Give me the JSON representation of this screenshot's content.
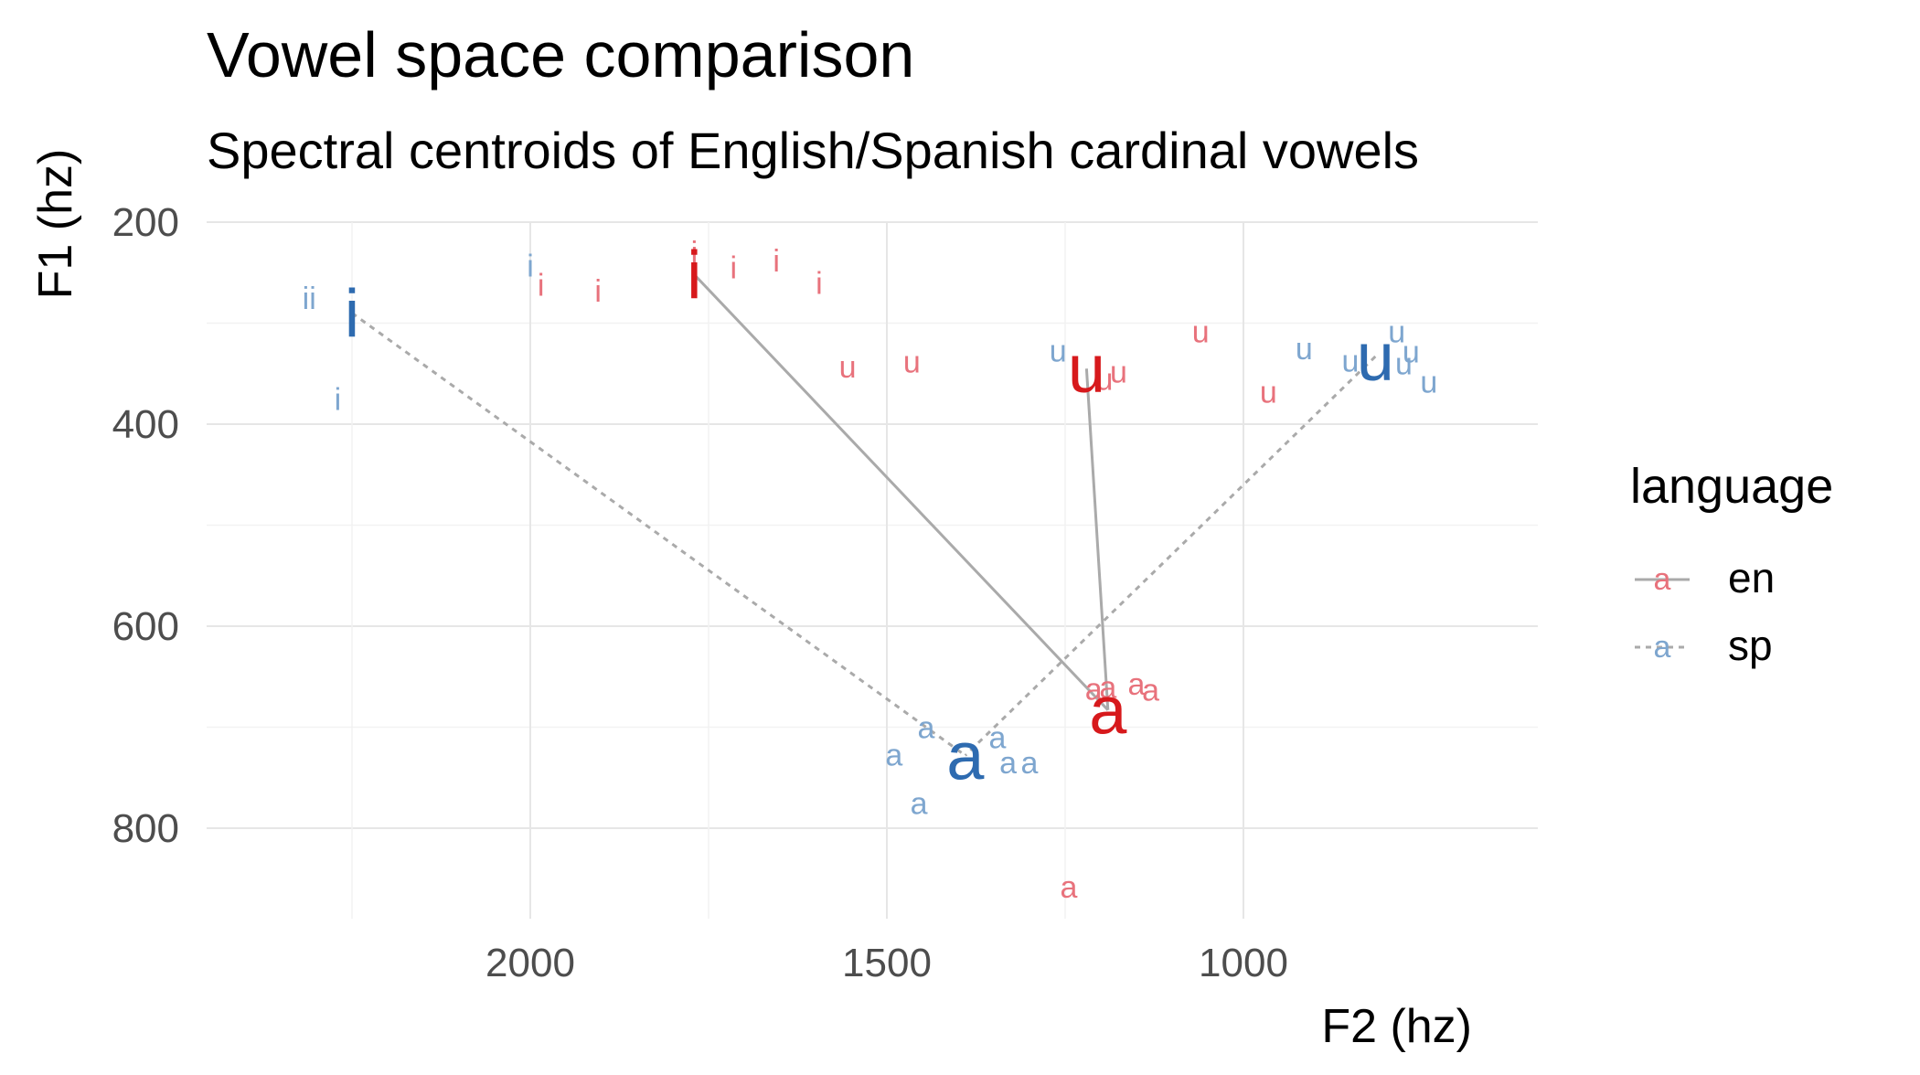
{
  "chart_data": {
    "type": "scatter",
    "title": "Vowel space comparison",
    "subtitle": "Spectral centroids of English/Spanish cardinal vowels",
    "xlabel": "F2 (hz)",
    "ylabel": "F1 (hz)",
    "x_reversed": true,
    "y_reversed": true,
    "xlim": [
      2400,
      820
    ],
    "ylim": [
      200,
      890
    ],
    "x_ticks": [
      2000,
      1500,
      1000
    ],
    "y_ticks": [
      200,
      400,
      600,
      800
    ],
    "grid": true,
    "legend": {
      "title": "language",
      "position": "right",
      "entries": [
        "en",
        "sp"
      ]
    },
    "colors": {
      "en": "#e8727c",
      "sp": "#7ea6cf",
      "en_centroid": "#d7191c",
      "sp_centroid": "#2e6bb0",
      "line": "#aaaaaa"
    },
    "series": [
      {
        "name": "en",
        "points": [
          {
            "label": "i",
            "x": 1770,
            "y": 230
          },
          {
            "label": "i",
            "x": 1715,
            "y": 245
          },
          {
            "label": "i",
            "x": 1655,
            "y": 238
          },
          {
            "label": "i",
            "x": 1595,
            "y": 260
          },
          {
            "label": "i",
            "x": 1985,
            "y": 262
          },
          {
            "label": "i",
            "x": 1905,
            "y": 268
          },
          {
            "label": "u",
            "x": 1555,
            "y": 343
          },
          {
            "label": "u",
            "x": 1465,
            "y": 338
          },
          {
            "label": "u",
            "x": 1060,
            "y": 308
          },
          {
            "label": "u",
            "x": 1195,
            "y": 355
          },
          {
            "label": "u",
            "x": 1175,
            "y": 348
          },
          {
            "label": "u",
            "x": 965,
            "y": 368
          },
          {
            "label": "a",
            "x": 1210,
            "y": 662
          },
          {
            "label": "a",
            "x": 1190,
            "y": 660
          },
          {
            "label": "a",
            "x": 1150,
            "y": 657
          },
          {
            "label": "a",
            "x": 1130,
            "y": 663
          },
          {
            "label": "a",
            "x": 1245,
            "y": 858
          }
        ],
        "centroids": [
          {
            "label": "i",
            "x": 1770,
            "y": 252
          },
          {
            "label": "u",
            "x": 1220,
            "y": 345
          },
          {
            "label": "a",
            "x": 1190,
            "y": 683
          }
        ]
      },
      {
        "name": "sp",
        "points": [
          {
            "label": "ii",
            "x": 2310,
            "y": 275
          },
          {
            "label": "i",
            "x": 2000,
            "y": 243
          },
          {
            "label": "i",
            "x": 2270,
            "y": 375
          },
          {
            "label": "u",
            "x": 1260,
            "y": 327
          },
          {
            "label": "u",
            "x": 785,
            "y": 308
          },
          {
            "label": "u",
            "x": 915,
            "y": 325
          },
          {
            "label": "u",
            "x": 850,
            "y": 337
          },
          {
            "label": "u",
            "x": 765,
            "y": 328
          },
          {
            "label": "u",
            "x": 775,
            "y": 340
          },
          {
            "label": "u",
            "x": 740,
            "y": 358
          },
          {
            "label": "a",
            "x": 1445,
            "y": 700
          },
          {
            "label": "a",
            "x": 1490,
            "y": 727
          },
          {
            "label": "a",
            "x": 1455,
            "y": 775
          },
          {
            "label": "a",
            "x": 1345,
            "y": 710
          },
          {
            "label": "a",
            "x": 1330,
            "y": 735
          },
          {
            "label": "a",
            "x": 1300,
            "y": 735
          }
        ],
        "centroids": [
          {
            "label": "i",
            "x": 2250,
            "y": 290
          },
          {
            "label": "u",
            "x": 815,
            "y": 333
          },
          {
            "label": "a",
            "x": 1390,
            "y": 728
          }
        ]
      }
    ]
  }
}
